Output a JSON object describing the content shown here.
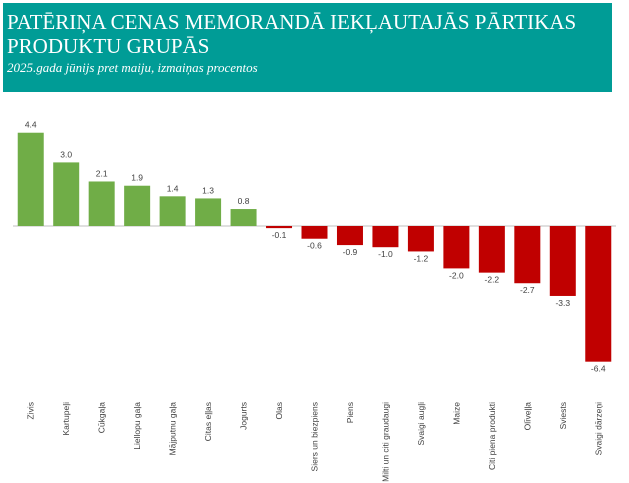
{
  "header": {
    "title": "PATĒRIŅA CENAS MEMORANDĀ IEKĻAUTAJĀS PĀRTIKAS PRODUKTU GRUPĀS",
    "subtitle": "2025.gada jūnijs pret maiju, izmaiņas procentos"
  },
  "colors": {
    "banner": "#009c96",
    "positive": "#70ad47",
    "negative": "#c00000"
  },
  "chart_data": {
    "type": "bar",
    "title": "PATĒRIŅA CENAS MEMORANDĀ IEKĻAUTAJĀS PĀRTIKAS PRODUKTU GRUPĀS",
    "subtitle": "2025.gada jūnijs pret maiju, izmaiņas procentos",
    "categories": [
      "Zivis",
      "Kartupeļi",
      "Cūkgaļa",
      "Liellopu gaļa",
      "Mājputnu gaļa",
      "Citas eļļas",
      "Jogurts",
      "Olas",
      "Siers un biezpiens",
      "Piens",
      "Milti un citi graudaugi",
      "Svaigi augļi",
      "Maize",
      "Citi piena produkti",
      "Olīveļļa",
      "Sviests",
      "Svaigi dārzeņi"
    ],
    "values": [
      4.4,
      3.0,
      2.1,
      1.9,
      1.4,
      1.3,
      0.8,
      -0.1,
      -0.6,
      -0.9,
      -1.0,
      -1.2,
      -2.0,
      -2.2,
      -2.7,
      -3.3,
      -6.4
    ],
    "value_labels": [
      "4.4",
      "3.0",
      "2.1",
      "1.9",
      "1.4",
      "1.3",
      "0.8",
      "-0.1",
      "-0.6",
      "-0.9",
      "-1.0",
      "-1.2",
      "-2.0",
      "-2.2",
      "-2.7",
      "-3.3",
      "-6.4"
    ],
    "xlabel": "",
    "ylabel": "",
    "grid": false,
    "legend": "none"
  }
}
